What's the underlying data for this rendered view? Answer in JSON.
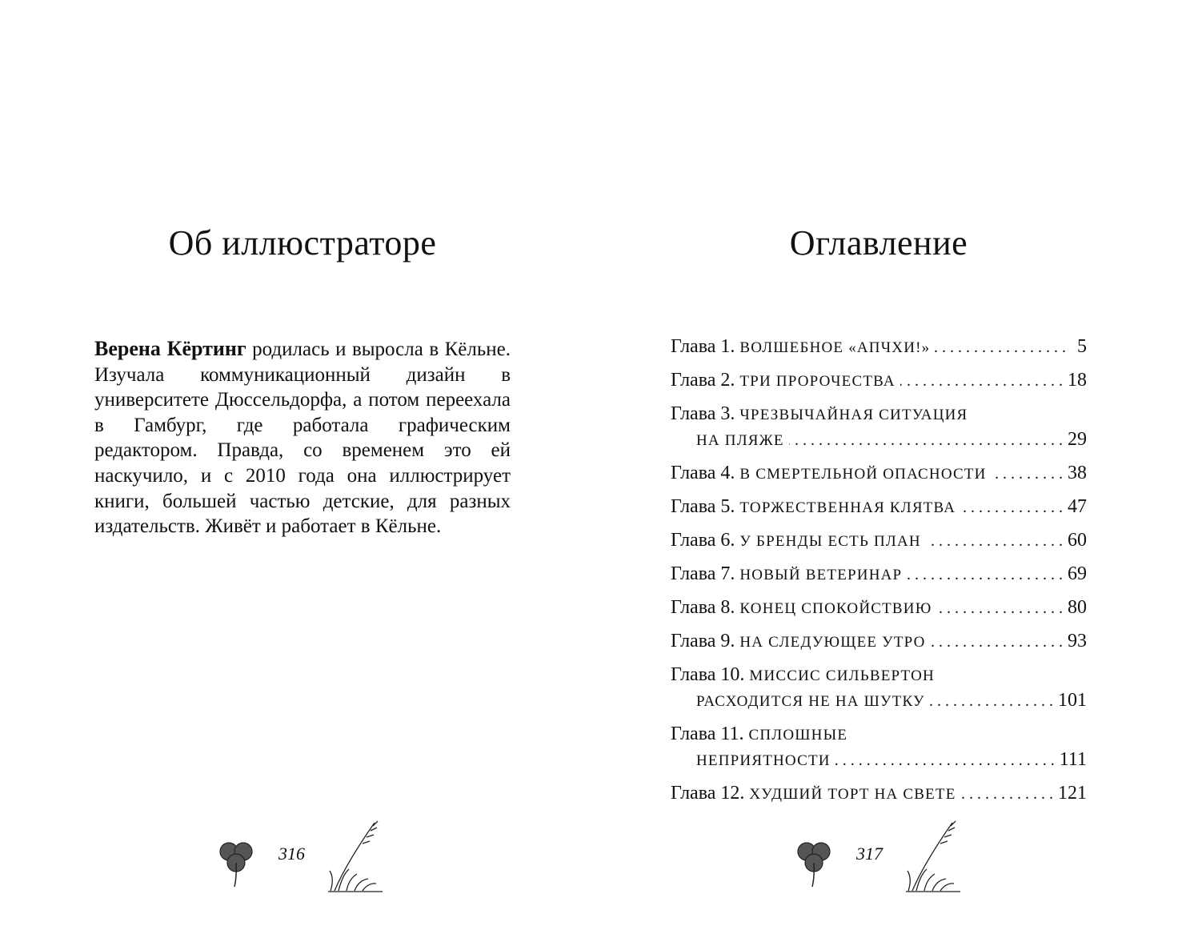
{
  "left_page": {
    "title": "Об иллюстраторе",
    "bio_name": "Верена Кёртинг",
    "bio_text": " родилась и выросла в Кёльне. Изучала коммуникационный дизайн в университете Дюссельдорфа, а потом переехала в Гамбург, где работала графическим редактором. Правда, со временем это ей наскучило, и с 2010 года она иллюстрирует книги, большей частью детские, для разных издательств. Живёт и работает в Кёльне.",
    "page_number": "316",
    "ornaments": [
      "clover-icon",
      "grass-icon"
    ]
  },
  "right_page": {
    "title": "Оглавление",
    "toc": [
      {
        "label": "Глава 1.",
        "title": [
          "ВОЛШЕБНОЕ «АПЧХИ!»"
        ],
        "page": "5"
      },
      {
        "label": "Глава 2.",
        "title": [
          "ТРИ ПРОРОЧЕСТВА"
        ],
        "page": "18"
      },
      {
        "label": "Глава 3.",
        "title": [
          "ЧРЕЗВЫЧАЙНАЯ СИТУАЦИЯ",
          "НА ПЛЯЖЕ"
        ],
        "page": "29"
      },
      {
        "label": "Глава 4.",
        "title": [
          "В СМЕРТЕЛЬНОЙ ОПАСНОСТИ"
        ],
        "page": "38"
      },
      {
        "label": "Глава 5.",
        "title": [
          "ТОРЖЕСТВЕННАЯ КЛЯТВА"
        ],
        "page": "47"
      },
      {
        "label": "Глава 6.",
        "title": [
          "У БРЕНДЫ ЕСТЬ ПЛАН"
        ],
        "page": "60"
      },
      {
        "label": "Глава 7.",
        "title": [
          "НОВЫЙ ВЕТЕРИНАР"
        ],
        "page": "69"
      },
      {
        "label": "Глава 8.",
        "title": [
          "КОНЕЦ СПОКОЙСТВИЮ"
        ],
        "page": "80"
      },
      {
        "label": "Глава 9.",
        "title": [
          "НА СЛЕДУЮЩЕЕ УТРО"
        ],
        "page": "93"
      },
      {
        "label": "Глава 10.",
        "title": [
          "МИССИС СИЛЬВЕРТОН",
          "РАСХОДИТСЯ НЕ НА ШУТКУ"
        ],
        "page": "101"
      },
      {
        "label": "Глава 11.",
        "title": [
          "СПЛОШНЫЕ",
          "НЕПРИЯТНОСТИ"
        ],
        "page": "111"
      },
      {
        "label": "Глава 12.",
        "title": [
          "ХУДШИЙ ТОРТ НА СВЕТЕ"
        ],
        "page": "121"
      }
    ],
    "page_number": "317",
    "ornaments": [
      "clover-icon",
      "grass-icon"
    ]
  }
}
